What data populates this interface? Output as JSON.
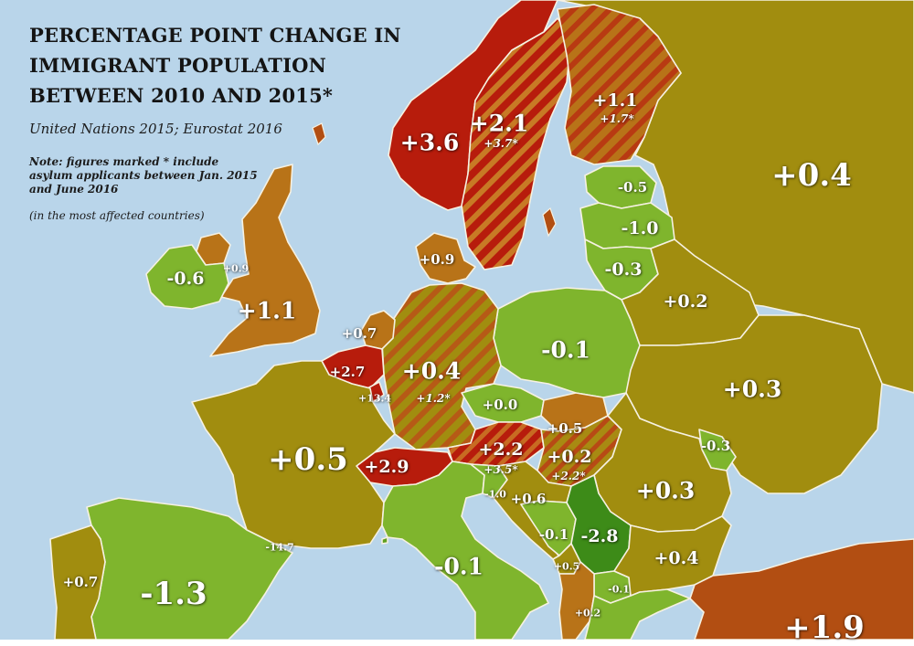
{
  "title": "PERCENTAGE POINT CHANGE IN IMMIGRANT POPULATION BETWEEN 2010 AND 2015*",
  "source": "United Nations 2015; Eurostat 2016",
  "note": "Note: figures marked * include asylum applicants between Jan. 2015 and June 2016",
  "note_sub": "(in the most affected countries)",
  "colors": {
    "sea": "#b9d5ea",
    "border": "#f6f1e2",
    "dark_red": "#b71c0c",
    "orange_brown": "#b87318",
    "olive": "#a18d0f",
    "light_green": "#7fb52d",
    "green": "#5fa020",
    "dark_green": "#3d8b18",
    "rust": "#b24e12"
  },
  "countries": [
    {
      "name": "Norway",
      "value": "+3.6",
      "color": "dark_red"
    },
    {
      "name": "Sweden",
      "value": "+2.1",
      "asylum_value": "+3.7*",
      "color": "dark_red",
      "hatched": true
    },
    {
      "name": "Finland",
      "value": "+1.1",
      "asylum_value": "+1.7*",
      "color": "orange_brown",
      "hatched": true
    },
    {
      "name": "Russia",
      "value": "+0.4",
      "color": "olive"
    },
    {
      "name": "Estonia",
      "value": "-0.5",
      "color": "light_green"
    },
    {
      "name": "Latvia",
      "value": "-1.0",
      "color": "light_green"
    },
    {
      "name": "Lithuania",
      "value": "-0.3",
      "color": "light_green"
    },
    {
      "name": "Denmark",
      "value": "+0.9",
      "color": "orange_brown"
    },
    {
      "name": "Ireland",
      "value": "-0.6",
      "color": "light_green"
    },
    {
      "name": "Northern Ireland",
      "value": "+0.9",
      "color": "orange_brown"
    },
    {
      "name": "United Kingdom",
      "value": "+1.1",
      "color": "orange_brown"
    },
    {
      "name": "Netherlands",
      "value": "+0.7",
      "color": "orange_brown"
    },
    {
      "name": "Belgium",
      "value": "+2.7",
      "color": "dark_red"
    },
    {
      "name": "Luxembourg",
      "value": "+13.4",
      "color": "dark_red"
    },
    {
      "name": "Germany",
      "value": "+0.4",
      "asylum_value": "+1.2*",
      "color": "olive",
      "hatched": true
    },
    {
      "name": "Poland",
      "value": "-0.1",
      "color": "light_green"
    },
    {
      "name": "Belarus",
      "value": "+0.2",
      "color": "olive"
    },
    {
      "name": "Ukraine",
      "value": "+0.3",
      "color": "olive"
    },
    {
      "name": "Czech Republic",
      "value": "+0.0",
      "color": "light_green"
    },
    {
      "name": "Slovakia",
      "value": "+0.5",
      "color": "orange_brown"
    },
    {
      "name": "Austria",
      "value": "+2.2",
      "asylum_value": "+3.5*",
      "color": "dark_red",
      "hatched": true
    },
    {
      "name": "Hungary",
      "value": "+0.2",
      "asylum_value": "+2.2*",
      "color": "olive",
      "hatched": true
    },
    {
      "name": "Moldova",
      "value": "-0.3",
      "color": "light_green"
    },
    {
      "name": "France",
      "value": "+0.5",
      "color": "olive"
    },
    {
      "name": "Switzerland",
      "value": "+2.9",
      "color": "dark_red"
    },
    {
      "name": "Slovenia",
      "value": "-1.0",
      "color": "light_green"
    },
    {
      "name": "Croatia",
      "value": "+0.6",
      "color": "olive"
    },
    {
      "name": "Romania",
      "value": "+0.3",
      "color": "olive"
    },
    {
      "name": "Bosnia and Herzegovina",
      "value": "-0.1",
      "color": "light_green"
    },
    {
      "name": "Serbia",
      "value": "-2.8",
      "color": "dark_green"
    },
    {
      "name": "Montenegro",
      "value": "+0.5",
      "color": "olive"
    },
    {
      "name": "Bulgaria",
      "value": "+0.4",
      "color": "olive"
    },
    {
      "name": "North Macedonia",
      "value": "-0.1",
      "color": "light_green"
    },
    {
      "name": "Albania",
      "value": "+0.2",
      "color": "orange_brown"
    },
    {
      "name": "Monaco",
      "value": "-14.7",
      "color": "green"
    },
    {
      "name": "Italy",
      "value": "-0.1",
      "color": "light_green"
    },
    {
      "name": "Portugal",
      "value": "+0.7",
      "color": "olive"
    },
    {
      "name": "Spain",
      "value": "-1.3",
      "color": "light_green"
    },
    {
      "name": "Turkey",
      "value": "+1.9",
      "color": "rust"
    }
  ]
}
